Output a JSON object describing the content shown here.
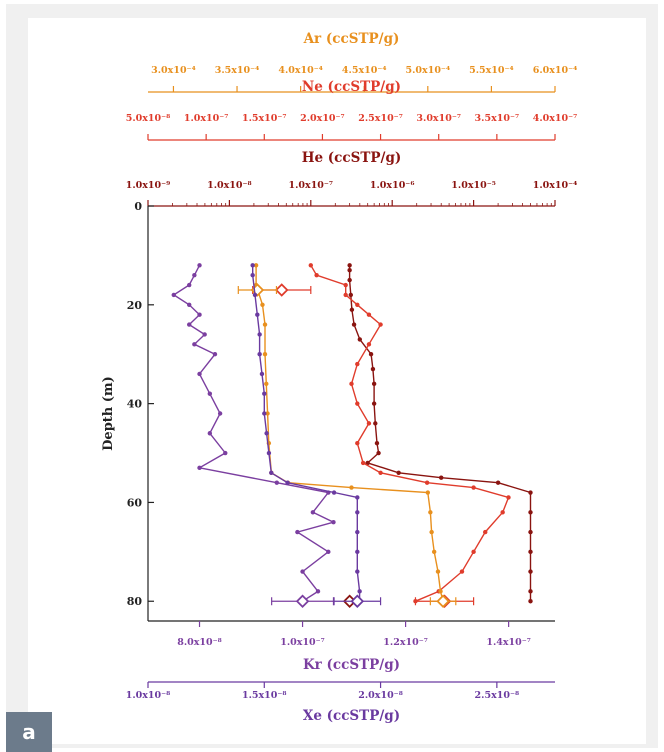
{
  "panel_label": "a",
  "colors": {
    "ar": "#e8901e",
    "ne": "#e03c2c",
    "he": "#8a1410",
    "kr": "#7b3fa0",
    "xe": "#6a3aa0",
    "axis": "#222222"
  },
  "chart_data": {
    "type": "line",
    "y_axis": {
      "label": "Depth (m)",
      "range": [
        0,
        84
      ],
      "inverted": true,
      "ticks": [
        "0",
        "20",
        "40",
        "60",
        "80"
      ]
    },
    "axes": {
      "ar": {
        "label": "Ar (ccSTP/g)",
        "range": [
          0.00028,
          0.0006
        ],
        "scale": "linear",
        "ticks": [
          {
            "v": 0.0003,
            "t": "3.0x10⁻⁴"
          },
          {
            "v": 0.00035,
            "t": "3.5x10⁻⁴"
          },
          {
            "v": 0.0004,
            "t": "4.0x10⁻⁴"
          },
          {
            "v": 0.00045,
            "t": "4.5x10⁻⁴"
          },
          {
            "v": 0.0005,
            "t": "5.0x10⁻⁴"
          },
          {
            "v": 0.00055,
            "t": "5.5x10⁻⁴"
          },
          {
            "v": 0.0006,
            "t": "6.0x10⁻⁴"
          }
        ]
      },
      "ne": {
        "label": "Ne (ccSTP/g)",
        "range": [
          5e-08,
          4e-07
        ],
        "scale": "linear",
        "ticks": [
          {
            "v": 5e-08,
            "t": "5.0x10⁻⁸"
          },
          {
            "v": 1e-07,
            "t": "1.0x10⁻⁷"
          },
          {
            "v": 1.5e-07,
            "t": "1.5x10⁻⁷"
          },
          {
            "v": 2e-07,
            "t": "2.0x10⁻⁷"
          },
          {
            "v": 2.5e-07,
            "t": "2.5x10⁻⁷"
          },
          {
            "v": 3e-07,
            "t": "3.0x10⁻⁷"
          },
          {
            "v": 3.5e-07,
            "t": "3.5x10⁻⁷"
          },
          {
            "v": 4e-07,
            "t": "4.0x10⁻⁷"
          }
        ]
      },
      "he": {
        "label": "He (ccSTP/g)",
        "range": [
          1e-09,
          0.0001
        ],
        "scale": "log",
        "ticks": [
          {
            "v": 1e-09,
            "t": "1.0x10⁻⁹"
          },
          {
            "v": 1e-08,
            "t": "1.0x10⁻⁸"
          },
          {
            "v": 1e-07,
            "t": "1.0x10⁻⁷"
          },
          {
            "v": 1e-06,
            "t": "1.0x10⁻⁶"
          },
          {
            "v": 1e-05,
            "t": "1.0x10⁻⁵"
          },
          {
            "v": 0.0001,
            "t": "1.0x10⁻⁴"
          }
        ]
      },
      "kr": {
        "label": "Kr (ccSTP/g)",
        "range": [
          7e-08,
          1.49e-07
        ],
        "scale": "linear",
        "ticks": [
          {
            "v": 8e-08,
            "t": "8.0x10⁻⁸"
          },
          {
            "v": 1e-07,
            "t": "1.0x10⁻⁷"
          },
          {
            "v": 1.2e-07,
            "t": "1.2x10⁻⁷"
          },
          {
            "v": 1.4e-07,
            "t": "1.4x10⁻⁷"
          }
        ]
      },
      "xe": {
        "label": "Xe (ccSTP/g)",
        "range": [
          1e-08,
          2.75e-08
        ],
        "scale": "linear",
        "ticks": [
          {
            "v": 1e-08,
            "t": "1.0x10⁻⁸"
          },
          {
            "v": 1.5e-08,
            "t": "1.5x10⁻⁸"
          },
          {
            "v": 2e-08,
            "t": "2.0x10⁻⁸"
          },
          {
            "v": 2.5e-08,
            "t": "2.5x10⁻⁸"
          }
        ]
      }
    },
    "series": [
      {
        "gas": "he",
        "points": [
          [
            3e-07,
            12
          ],
          [
            3e-07,
            13
          ],
          [
            3e-07,
            15
          ],
          [
            3.1e-07,
            18
          ],
          [
            3.2e-07,
            21
          ],
          [
            3.4e-07,
            24
          ],
          [
            4e-07,
            27
          ],
          [
            5.5e-07,
            30
          ],
          [
            5.8e-07,
            33
          ],
          [
            6e-07,
            36
          ],
          [
            6e-07,
            40
          ],
          [
            6.2e-07,
            44
          ],
          [
            6.5e-07,
            48
          ],
          [
            6.8e-07,
            50
          ],
          [
            5e-07,
            52
          ],
          [
            1.2e-06,
            54
          ],
          [
            4e-06,
            55
          ],
          [
            2e-05,
            56
          ],
          [
            5e-05,
            58
          ],
          [
            5e-05,
            62
          ],
          [
            5e-05,
            66
          ],
          [
            5e-05,
            70
          ],
          [
            5e-05,
            74
          ],
          [
            5e-05,
            78
          ],
          [
            5e-05,
            80
          ]
        ],
        "markers": [
          [
            3e-07,
            80
          ]
        ]
      },
      {
        "gas": "ne",
        "points": [
          [
            1.9e-07,
            12
          ],
          [
            1.95e-07,
            14
          ],
          [
            2.2e-07,
            16
          ],
          [
            2.2e-07,
            18
          ],
          [
            2.3e-07,
            20
          ],
          [
            2.4e-07,
            22
          ],
          [
            2.5e-07,
            24
          ],
          [
            2.4e-07,
            28
          ],
          [
            2.3e-07,
            32
          ],
          [
            2.25e-07,
            36
          ],
          [
            2.3e-07,
            40
          ],
          [
            2.4e-07,
            44
          ],
          [
            2.3e-07,
            48
          ],
          [
            2.35e-07,
            52
          ],
          [
            2.5e-07,
            54
          ],
          [
            2.9e-07,
            56
          ],
          [
            3.3e-07,
            57
          ],
          [
            3.6e-07,
            59
          ],
          [
            3.55e-07,
            62
          ],
          [
            3.4e-07,
            66
          ],
          [
            3.3e-07,
            70
          ],
          [
            3.2e-07,
            74
          ],
          [
            3e-07,
            78
          ],
          [
            2.8e-07,
            80
          ]
        ],
        "markers": [
          [
            1.65e-07,
            17,
            2.5e-08
          ],
          [
            3.05e-07,
            80,
            2.5e-08
          ]
        ]
      },
      {
        "gas": "ar",
        "points": [
          [
            0.000365,
            12
          ],
          [
            0.000365,
            16
          ],
          [
            0.00037,
            20
          ],
          [
            0.000372,
            24
          ],
          [
            0.000372,
            30
          ],
          [
            0.000373,
            36
          ],
          [
            0.000374,
            42
          ],
          [
            0.000375,
            48
          ],
          [
            0.000377,
            54
          ],
          [
            0.00039,
            56
          ],
          [
            0.00044,
            57
          ],
          [
            0.0005,
            58
          ],
          [
            0.000502,
            62
          ],
          [
            0.000503,
            66
          ],
          [
            0.000505,
            70
          ],
          [
            0.000508,
            74
          ],
          [
            0.00051,
            78
          ],
          [
            0.000512,
            80
          ]
        ],
        "markers": [
          [
            0.000366,
            17,
            1.5e-05
          ],
          [
            0.000512,
            80,
            1e-05
          ]
        ]
      },
      {
        "gas": "kr",
        "points": [
          [
            8e-08,
            12
          ],
          [
            7.9e-08,
            14
          ],
          [
            7.8e-08,
            16
          ],
          [
            7.5e-08,
            18
          ],
          [
            7.8e-08,
            20
          ],
          [
            8e-08,
            22
          ],
          [
            7.8e-08,
            24
          ],
          [
            8.1e-08,
            26
          ],
          [
            7.9e-08,
            28
          ],
          [
            8.3e-08,
            30
          ],
          [
            8e-08,
            34
          ],
          [
            8.2e-08,
            38
          ],
          [
            8.4e-08,
            42
          ],
          [
            8.2e-08,
            46
          ],
          [
            8.5e-08,
            50
          ],
          [
            8e-08,
            53
          ],
          [
            9.5e-08,
            56
          ],
          [
            1.05e-07,
            58
          ],
          [
            1.02e-07,
            62
          ],
          [
            1.06e-07,
            64
          ],
          [
            9.9e-08,
            66
          ],
          [
            1.05e-07,
            70
          ],
          [
            1e-07,
            74
          ],
          [
            1.03e-07,
            78
          ],
          [
            1e-07,
            80
          ]
        ],
        "markers": [
          [
            1e-07,
            80,
            6e-09
          ]
        ]
      },
      {
        "gas": "xe",
        "points": [
          [
            1.45e-08,
            12
          ],
          [
            1.45e-08,
            14
          ],
          [
            1.46e-08,
            18
          ],
          [
            1.47e-08,
            22
          ],
          [
            1.48e-08,
            26
          ],
          [
            1.48e-08,
            30
          ],
          [
            1.49e-08,
            34
          ],
          [
            1.5e-08,
            38
          ],
          [
            1.5e-08,
            42
          ],
          [
            1.51e-08,
            46
          ],
          [
            1.52e-08,
            50
          ],
          [
            1.53e-08,
            54
          ],
          [
            1.6e-08,
            56
          ],
          [
            1.8e-08,
            58
          ],
          [
            1.9e-08,
            59
          ],
          [
            1.9e-08,
            62
          ],
          [
            1.9e-08,
            66
          ],
          [
            1.9e-08,
            70
          ],
          [
            1.9e-08,
            74
          ],
          [
            1.91e-08,
            78
          ],
          [
            1.91e-08,
            80
          ]
        ],
        "markers": [
          [
            1.9e-08,
            80,
            1e-09
          ]
        ]
      }
    ]
  }
}
